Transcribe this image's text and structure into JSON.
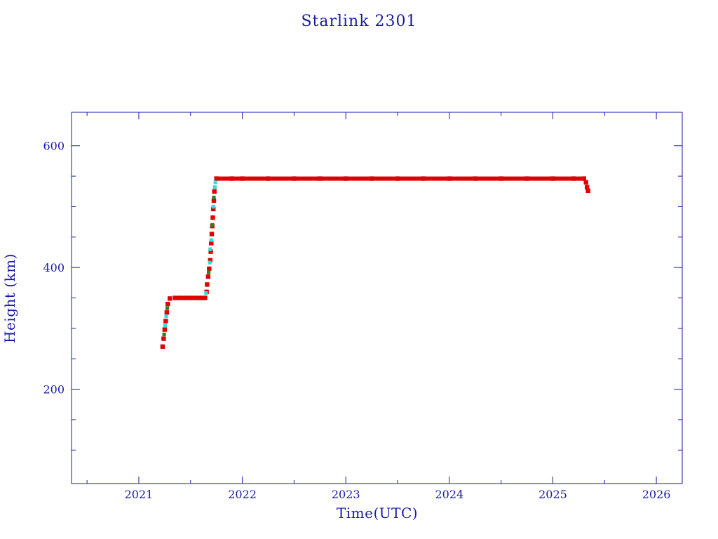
{
  "chart_data": {
    "type": "scatter",
    "title": "Starlink 2301",
    "xlabel": "Time(UTC)",
    "ylabel": "Height (km)",
    "xlim": [
      2020.35,
      2026.25
    ],
    "ylim": [
      45,
      655
    ],
    "x_major_ticks": [
      2021,
      2022,
      2023,
      2024,
      2025,
      2026
    ],
    "x_tick_labels": [
      "2021",
      "2022",
      "2023",
      "2024",
      "2025",
      "2026"
    ],
    "x_minor_ticks": [
      2020.5,
      2021.5,
      2022.5,
      2023.5,
      2024.5,
      2025.5
    ],
    "y_major_ticks": [
      200,
      400,
      600
    ],
    "y_tick_labels": [
      "200",
      "400",
      "600"
    ],
    "y_minor_ticks": [
      100,
      150,
      250,
      300,
      350,
      450,
      500,
      550
    ],
    "grid": false,
    "colors": {
      "axis": "#1a1aa6",
      "primary": "#e00000",
      "secondary": "#33dddd",
      "tertiary": "#228822"
    },
    "series": [
      {
        "color": "#e00000",
        "points": [
          [
            2021.23,
            270
          ],
          [
            2021.24,
            283
          ],
          [
            2021.25,
            298
          ],
          [
            2021.26,
            312
          ],
          [
            2021.27,
            326
          ],
          [
            2021.28,
            340
          ],
          [
            2021.3,
            349
          ],
          [
            2021.35,
            350
          ],
          [
            2021.4,
            350
          ],
          [
            2021.45,
            350
          ],
          [
            2021.5,
            350
          ],
          [
            2021.55,
            350
          ],
          [
            2021.6,
            350
          ],
          [
            2021.64,
            350
          ],
          [
            2021.655,
            360
          ],
          [
            2021.66,
            372
          ],
          [
            2021.67,
            385
          ],
          [
            2021.68,
            398
          ],
          [
            2021.69,
            412
          ],
          [
            2021.695,
            426
          ],
          [
            2021.7,
            440
          ],
          [
            2021.705,
            455
          ],
          [
            2021.71,
            468
          ],
          [
            2021.715,
            482
          ],
          [
            2021.72,
            496
          ],
          [
            2021.725,
            510
          ],
          [
            2021.73,
            525
          ],
          [
            2021.75,
            546
          ],
          [
            2021.9,
            546
          ],
          [
            2022.0,
            546
          ],
          [
            2022.25,
            546
          ],
          [
            2022.5,
            546
          ],
          [
            2022.75,
            546
          ],
          [
            2023.0,
            546
          ],
          [
            2023.25,
            546
          ],
          [
            2023.5,
            546
          ],
          [
            2023.75,
            546
          ],
          [
            2024.0,
            546
          ],
          [
            2024.25,
            546
          ],
          [
            2024.5,
            546
          ],
          [
            2024.75,
            546
          ],
          [
            2025.0,
            546
          ],
          [
            2025.2,
            546
          ],
          [
            2025.3,
            546
          ],
          [
            2025.32,
            540
          ],
          [
            2025.33,
            532
          ],
          [
            2025.34,
            526
          ]
        ]
      },
      {
        "color": "#33dddd",
        "points": [
          [
            2021.255,
            305
          ],
          [
            2021.265,
            320
          ],
          [
            2021.65,
            358
          ],
          [
            2021.685,
            408
          ],
          [
            2021.69,
            430
          ],
          [
            2021.7,
            445
          ],
          [
            2021.72,
            500
          ],
          [
            2021.735,
            532
          ],
          [
            2021.74,
            540
          ]
        ]
      },
      {
        "color": "#228822",
        "points": [
          [
            2021.245,
            290
          ],
          [
            2021.275,
            333
          ],
          [
            2021.675,
            392
          ],
          [
            2021.71,
            470
          ],
          [
            2021.725,
            515
          ]
        ]
      }
    ]
  }
}
